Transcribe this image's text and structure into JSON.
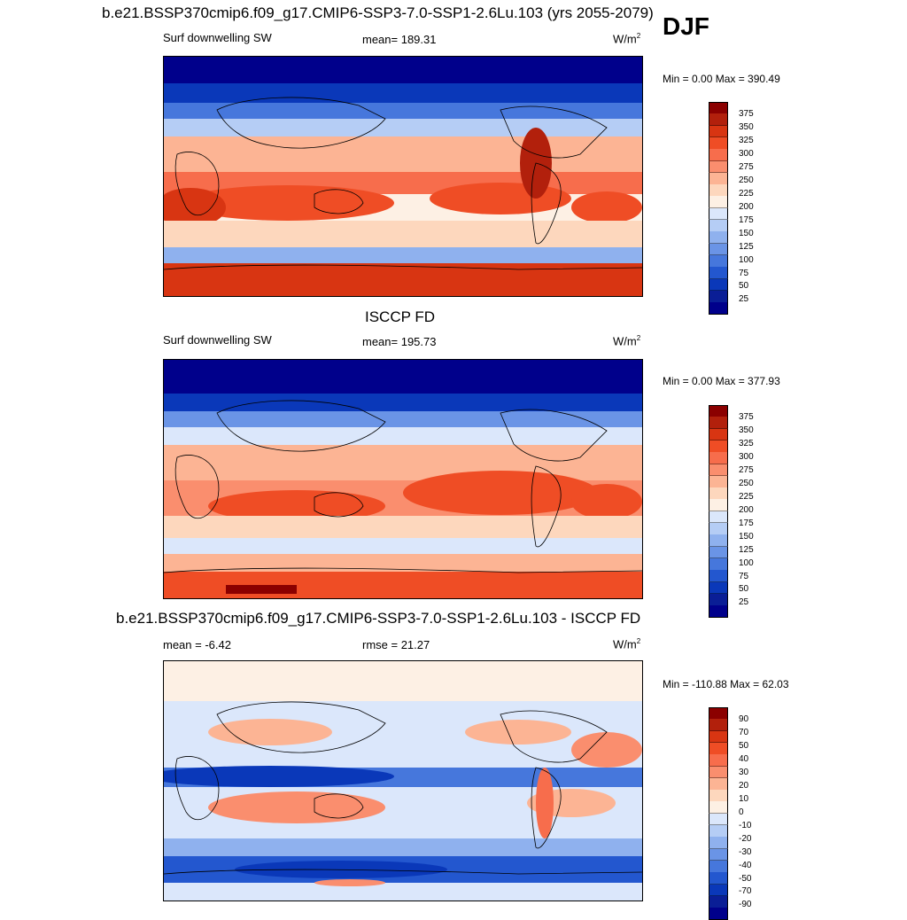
{
  "header": {
    "main_title": "b.e21.BSSP370cmip6.f09_g17.CMIP6-SSP3-7.0-SSP1-2.6Lu.103 (yrs 2055-2079)",
    "season": "DJF"
  },
  "panels": [
    {
      "title": "",
      "left_label": "Surf downwelling SW",
      "center_label": "mean= 189.31",
      "units": "W/m",
      "units_sup": "2",
      "minmax": "Min =   0.00 Max = 390.49",
      "colorbar": {
        "colors": [
          "#8b0000",
          "#b2200c",
          "#d83512",
          "#ef4d25",
          "#f76d4c",
          "#fa8e6e",
          "#fcb494",
          "#fdd7bd",
          "#fdf0e4",
          "#dbe7fb",
          "#b5cdf5",
          "#8fb1ee",
          "#6a94e6",
          "#4677dc",
          "#2357cf",
          "#0a38b9",
          "#0a1e96",
          "#00008b"
        ],
        "labels": [
          "375",
          "350",
          "325",
          "300",
          "275",
          "250",
          "225",
          "200",
          "175",
          "150",
          "125",
          "100",
          "75",
          "50",
          "25"
        ]
      }
    },
    {
      "title": "ISCCP FD",
      "left_label": "Surf downwelling SW",
      "center_label": "mean= 195.73",
      "units": "W/m",
      "units_sup": "2",
      "minmax": "Min =   0.00 Max = 377.93",
      "colorbar": {
        "colors": [
          "#8b0000",
          "#b2200c",
          "#d83512",
          "#ef4d25",
          "#f76d4c",
          "#fa8e6e",
          "#fcb494",
          "#fdd7bd",
          "#fdf0e4",
          "#dbe7fb",
          "#b5cdf5",
          "#8fb1ee",
          "#6a94e6",
          "#4677dc",
          "#2357cf",
          "#0a38b9",
          "#0a1e96",
          "#00008b"
        ],
        "labels": [
          "375",
          "350",
          "325",
          "300",
          "275",
          "250",
          "225",
          "200",
          "175",
          "150",
          "125",
          "100",
          "75",
          "50",
          "25"
        ]
      }
    },
    {
      "title": "b.e21.BSSP370cmip6.f09_g17.CMIP6-SSP3-7.0-SSP1-2.6Lu.103 - ISCCP FD",
      "left_label": "mean =  -6.42",
      "center_label": "rmse =  21.27",
      "units": "W/m",
      "units_sup": "2",
      "minmax": "Min = -110.88 Max =  62.03",
      "colorbar": {
        "colors": [
          "#8b0000",
          "#b2200c",
          "#d83512",
          "#ef4d25",
          "#f76d4c",
          "#fa8e6e",
          "#fcb494",
          "#fdd7bd",
          "#fdf0e4",
          "#dbe7fb",
          "#b5cdf5",
          "#8fb1ee",
          "#6a94e6",
          "#4677dc",
          "#2357cf",
          "#0a38b9",
          "#0a1e96",
          "#00008b"
        ],
        "labels": [
          "90",
          "70",
          "50",
          "40",
          "30",
          "20",
          "10",
          "0",
          "-10",
          "-20",
          "-30",
          "-40",
          "-50",
          "-70",
          "-90"
        ]
      }
    }
  ]
}
